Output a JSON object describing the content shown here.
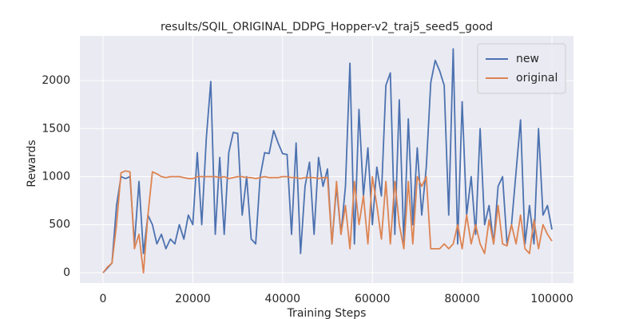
{
  "chart_data": {
    "type": "line",
    "title": "results/SQIL_ORIGINAL_DDPG_Hopper-v2_traj5_seed5_good",
    "xlabel": "Training Steps",
    "ylabel": "Rewards",
    "x": [
      0,
      1000,
      2000,
      3000,
      4000,
      5000,
      6000,
      7000,
      8000,
      9000,
      10000,
      11000,
      12000,
      13000,
      14000,
      15000,
      16000,
      17000,
      18000,
      19000,
      20000,
      21000,
      22000,
      23000,
      24000,
      25000,
      26000,
      27000,
      28000,
      29000,
      30000,
      31000,
      32000,
      33000,
      34000,
      35000,
      36000,
      37000,
      38000,
      39000,
      40000,
      41000,
      42000,
      43000,
      44000,
      45000,
      46000,
      47000,
      48000,
      49000,
      50000,
      51000,
      52000,
      53000,
      54000,
      55000,
      56000,
      57000,
      58000,
      59000,
      60000,
      61000,
      62000,
      63000,
      64000,
      65000,
      66000,
      67000,
      68000,
      69000,
      70000,
      71000,
      72000,
      73000,
      74000,
      75000,
      76000,
      77000,
      78000,
      79000,
      80000,
      81000,
      82000,
      83000,
      84000,
      85000,
      86000,
      87000,
      88000,
      89000,
      90000,
      91000,
      92000,
      93000,
      94000,
      95000,
      96000,
      97000,
      98000,
      99000,
      100000
    ],
    "series": [
      {
        "name": "new",
        "color": "#4c72b0",
        "values": [
          0,
          50,
          100,
          700,
          1000,
          980,
          1000,
          300,
          950,
          200,
          600,
          500,
          300,
          400,
          250,
          350,
          300,
          500,
          350,
          600,
          500,
          1250,
          500,
          1400,
          1990,
          400,
          1200,
          400,
          1250,
          1460,
          1450,
          600,
          1000,
          350,
          300,
          1000,
          1250,
          1240,
          1480,
          1350,
          1240,
          1230,
          400,
          1350,
          200,
          900,
          1150,
          400,
          1200,
          900,
          1080,
          300,
          900,
          400,
          900,
          2180,
          300,
          1700,
          800,
          1300,
          500,
          1100,
          800,
          1950,
          2080,
          400,
          1800,
          300,
          1600,
          500,
          1300,
          600,
          1100,
          1980,
          2210,
          2100,
          1950,
          600,
          2330,
          300,
          1780,
          600,
          1000,
          400,
          1500,
          500,
          700,
          300,
          900,
          1000,
          300,
          500,
          1050,
          1590,
          300,
          700,
          300,
          1500,
          600,
          700,
          450
        ]
      },
      {
        "name": "original",
        "color": "#dd8452",
        "values": [
          0,
          60,
          100,
          500,
          1040,
          1060,
          1050,
          250,
          400,
          0,
          600,
          1050,
          1030,
          1000,
          990,
          1000,
          1000,
          1000,
          990,
          980,
          980,
          1000,
          1000,
          1000,
          1000,
          1000,
          990,
          1000,
          980,
          990,
          1000,
          1000,
          990,
          990,
          980,
          990,
          1000,
          990,
          990,
          990,
          1000,
          1000,
          990,
          990,
          980,
          990,
          990,
          990,
          980,
          990,
          990,
          300,
          950,
          400,
          700,
          250,
          950,
          500,
          800,
          300,
          1000,
          700,
          350,
          950,
          300,
          950,
          500,
          250,
          950,
          300,
          1000,
          900,
          1000,
          250,
          250,
          250,
          300,
          250,
          300,
          500,
          250,
          600,
          300,
          500,
          300,
          200,
          550,
          300,
          700,
          300,
          280,
          500,
          300,
          600,
          250,
          200,
          550,
          250,
          500,
          400,
          330
        ]
      }
    ],
    "xlim": [
      -5160,
      104800
    ],
    "ylim": [
      -108,
      2465
    ],
    "xticks": [
      0,
      20000,
      40000,
      60000,
      80000,
      100000
    ],
    "yticks": [
      0,
      500,
      1000,
      1500,
      2000
    ],
    "grid": true,
    "legend": "upper right"
  }
}
